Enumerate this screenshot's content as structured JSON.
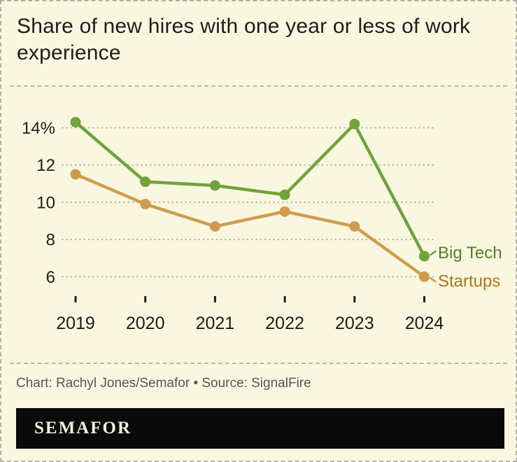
{
  "header": {
    "title": "Share of new hires with one year or less of work experience"
  },
  "footer": {
    "credit": "Chart: Rachyl Jones/Semafor • Source: SignalFire",
    "brand": "SEMAFOR"
  },
  "colors": {
    "background": "#faf7e0",
    "frame_border": "#b3b1a6",
    "divider": "#b9b7aa",
    "gridline": "#b9b7ab",
    "title_text": "#1d1d1b",
    "axis_text": "#1d1d1b",
    "tick_mark": "#1d1d1b",
    "credit_text": "#55565a",
    "brand_bar_bg": "#0a0a0a",
    "brand_text": "#f4f0dc",
    "big_tech": "#6fa33c",
    "big_tech_label": "#567f27",
    "startups": "#cf9c4f",
    "startups_label": "#a9741d"
  },
  "chart_data": {
    "type": "line",
    "title": "Share of new hires with one year or less of work experience",
    "unit": "%",
    "categories": [
      "2019",
      "2020",
      "2021",
      "2022",
      "2023",
      "2024"
    ],
    "series": [
      {
        "name": "Big Tech",
        "values": [
          14.3,
          11.1,
          10.9,
          10.4,
          14.2,
          7.1
        ],
        "line_color": "#6fa33c",
        "label_color": "#567f27",
        "label_dy": 3
      },
      {
        "name": "Startups",
        "values": [
          11.5,
          9.9,
          8.7,
          9.5,
          8.7,
          6.0
        ],
        "line_color": "#cf9c4f",
        "label_color": "#a9741d",
        "label_dy": 14
      }
    ],
    "y_ticks": [
      14,
      12,
      10,
      8,
      6
    ],
    "y_tick_labels": [
      "14%",
      "12",
      "10",
      "8",
      "6"
    ],
    "ylim": [
      5.2,
      15.3
    ],
    "grid": "horizontal-dotted",
    "legend_position": "end-of-line"
  }
}
